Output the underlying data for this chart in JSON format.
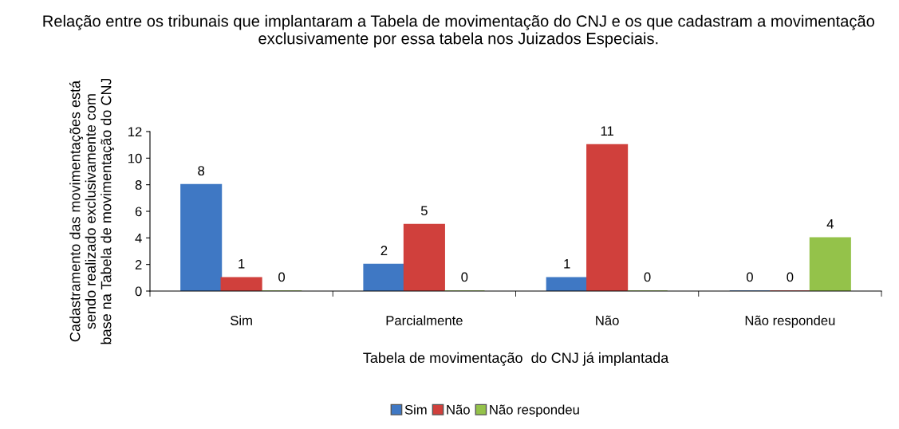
{
  "chart_data": {
    "type": "bar",
    "title": "Relação entre os tribunais que implantaram a Tabela de movimentação do CNJ e os que cadastram a movimentação exclusivamente por essa tabela nos Juizados Especiais.",
    "xlabel": "Tabela de movimentação  do CNJ já implantada",
    "ylabel": "Cadastramento das movimentações está\nsendo realizado exclusivamente com\nbase na Tabela de movimentação do CNJ",
    "categories": [
      "Sim",
      "Parcialmente",
      "Não",
      "Não respondeu"
    ],
    "series": [
      {
        "name": "Sim",
        "color": "#3f78c4",
        "values": [
          8,
          2,
          1,
          0
        ]
      },
      {
        "name": "Não",
        "color": "#d0403c",
        "values": [
          1,
          5,
          11,
          0
        ]
      },
      {
        "name": "Não respondeu",
        "color": "#94c24a",
        "values": [
          0,
          0,
          0,
          4
        ]
      }
    ],
    "ylim": [
      0,
      12
    ],
    "yticks": [
      0,
      2,
      4,
      6,
      8,
      10,
      12
    ],
    "grid": false,
    "legend": "bottom",
    "data_labels": true
  }
}
